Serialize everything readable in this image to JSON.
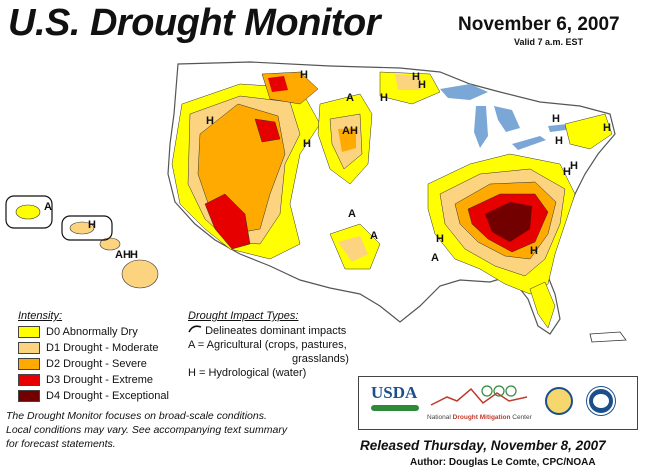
{
  "header": {
    "title": "U.S. Drought Monitor",
    "date": "November 6, 2007",
    "valid": "Valid 7 a.m. EST"
  },
  "map_labels": [
    "H",
    "H",
    "H",
    "H",
    "H",
    "H",
    "H",
    "H",
    "H",
    "H",
    "H",
    "H",
    "H",
    "H",
    "A",
    "A",
    "A",
    "A",
    "AH",
    "AH",
    "A",
    "H"
  ],
  "legend": {
    "heading": "Intensity:",
    "items": [
      {
        "label": "D0 Abnormally Dry",
        "color": "#ffff00"
      },
      {
        "label": "D1 Drought - Moderate",
        "color": "#fcd37f"
      },
      {
        "label": "D2 Drought - Severe",
        "color": "#ffaa00"
      },
      {
        "label": "D3 Drought - Extreme",
        "color": "#e60000"
      },
      {
        "label": "D4 Drought - Exceptional",
        "color": "#730000"
      }
    ]
  },
  "impact": {
    "heading": "Drought Impact Types:",
    "line1": "Delineates dominant impacts",
    "line2": "A = Agricultural (crops, pastures,",
    "line3": "grasslands)",
    "line4": "H = Hydrological (water)"
  },
  "note": {
    "line1": "The Drought Monitor focuses on broad-scale conditions.",
    "line2": "Local conditions may vary. See accompanying text summary",
    "line3": "for forecast statements."
  },
  "logos": {
    "usda": "USDA",
    "ndmc_prefix": "National",
    "ndmc_main": "Drought Mitigation",
    "ndmc_suffix": "Center"
  },
  "footer": {
    "released": "Released Thursday, November 8, 2007",
    "author": "Author:  Douglas Le Comte, CPC/NOAA"
  },
  "colors": {
    "water": "#7aa7d6",
    "land": "#ffffff",
    "d0": "#ffff00",
    "d1": "#fcd37f",
    "d2": "#ffaa00",
    "d3": "#e60000",
    "d4": "#730000"
  }
}
